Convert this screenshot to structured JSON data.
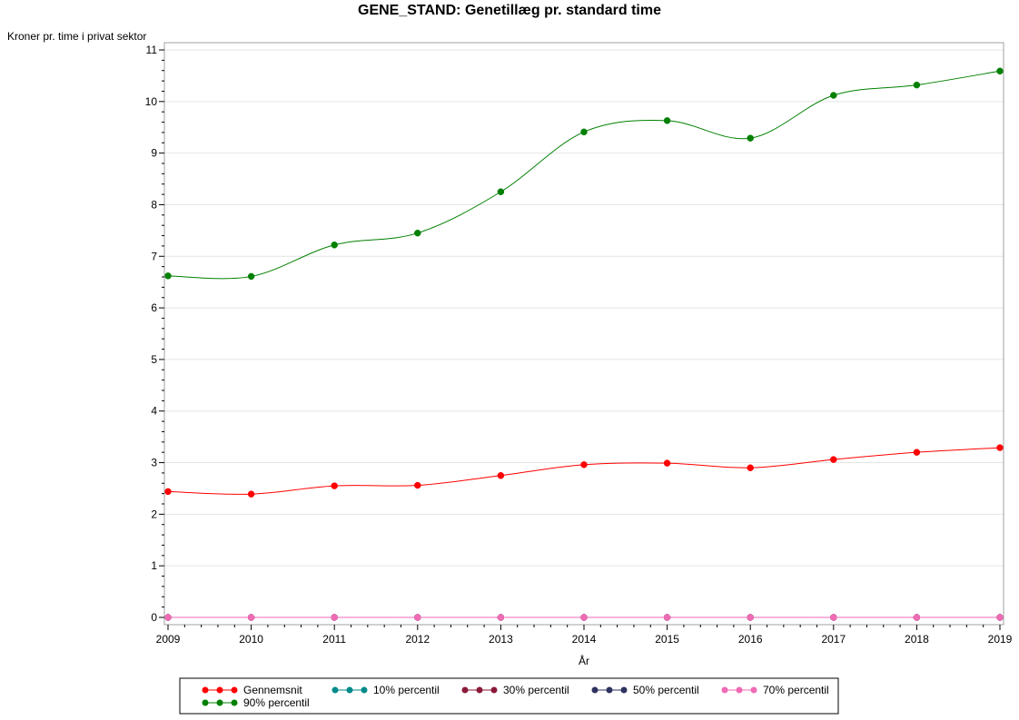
{
  "chart_data": {
    "type": "line",
    "title": "GENE_STAND: Genetillæg pr. standard time",
    "xlabel": "År",
    "ylabel": "Kroner pr. time i privat sektor",
    "x": [
      2009,
      2010,
      2011,
      2012,
      2013,
      2014,
      2015,
      2016,
      2017,
      2018,
      2019
    ],
    "x_tick_labels": [
      "2009",
      "2010",
      "2011",
      "2012",
      "2013",
      "2014",
      "2015",
      "2016",
      "2017",
      "2018",
      "2019"
    ],
    "xlim": [
      2009,
      2019
    ],
    "ylim": [
      0,
      11
    ],
    "y_ticks": [
      0,
      1,
      2,
      3,
      4,
      5,
      6,
      7,
      8,
      9,
      10,
      11
    ],
    "grid": "horizontal",
    "legend_position": "bottom",
    "smoothed": true,
    "series": [
      {
        "name": "Gennemsnit",
        "color": "#ff0000",
        "values": [
          2.44,
          2.39,
          2.55,
          2.56,
          2.75,
          2.96,
          2.99,
          2.9,
          3.06,
          3.2,
          3.29
        ]
      },
      {
        "name": "10% percentil",
        "color": "#008b8b",
        "values": [
          0,
          0,
          0,
          0,
          0,
          0,
          0,
          0,
          0,
          0,
          0
        ]
      },
      {
        "name": "30% percentil",
        "color": "#8b1a3a",
        "values": [
          0,
          0,
          0,
          0,
          0,
          0,
          0,
          0,
          0,
          0,
          0
        ]
      },
      {
        "name": "50% percentil",
        "color": "#2e3360",
        "values": [
          0,
          0,
          0,
          0,
          0,
          0,
          0,
          0,
          0,
          0,
          0
        ]
      },
      {
        "name": "70% percentil",
        "color": "#f06ab4",
        "values": [
          0,
          0,
          0,
          0,
          0,
          0,
          0,
          0,
          0,
          0,
          0
        ]
      },
      {
        "name": "90% percentil",
        "color": "#008000",
        "values": [
          6.62,
          6.61,
          7.22,
          7.45,
          8.25,
          9.41,
          9.63,
          9.29,
          10.12,
          10.32,
          10.59
        ]
      }
    ]
  }
}
